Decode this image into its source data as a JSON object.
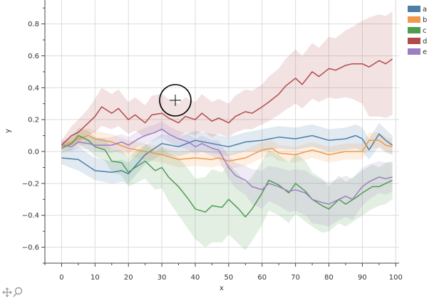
{
  "chart_data": {
    "type": "line",
    "xlabel": "x",
    "ylabel": "y",
    "xlim": [
      -5,
      101
    ],
    "ylim": [
      -0.7,
      0.95
    ],
    "xticks": [
      0,
      10,
      20,
      30,
      40,
      50,
      60,
      70,
      80,
      90,
      100
    ],
    "yticks": [
      -0.6,
      -0.4,
      -0.2,
      0.0,
      0.2,
      0.4,
      0.6,
      0.8
    ],
    "xtick_labels": [
      "0",
      "10",
      "20",
      "30",
      "40",
      "50",
      "60",
      "70",
      "80",
      "90",
      "100"
    ],
    "ytick_labels": [
      "−0.6",
      "−0.4",
      "−0.2",
      "0.0",
      "0.2",
      "0.4",
      "0.6",
      "0.8"
    ],
    "grid": true,
    "legend_position": "top-right outside",
    "bands": "shaded min–max envelope around each series",
    "series": [
      {
        "name": "a",
        "color": "#4c7ea8",
        "points": [
          [
            0,
            -0.04
          ],
          [
            5,
            -0.05
          ],
          [
            10,
            -0.12
          ],
          [
            15,
            -0.13
          ],
          [
            18,
            -0.12
          ],
          [
            20,
            -0.14
          ],
          [
            25,
            -0.02
          ],
          [
            30,
            0.05
          ],
          [
            35,
            0.03
          ],
          [
            40,
            0.07
          ],
          [
            45,
            0.05
          ],
          [
            50,
            0.03
          ],
          [
            55,
            0.06
          ],
          [
            60,
            0.07
          ],
          [
            65,
            0.09
          ],
          [
            70,
            0.08
          ],
          [
            75,
            0.1
          ],
          [
            80,
            0.07
          ],
          [
            85,
            0.08
          ],
          [
            88,
            0.1
          ],
          [
            90,
            0.08
          ],
          [
            92,
            0.01
          ],
          [
            95,
            0.11
          ],
          [
            97,
            0.07
          ],
          [
            99,
            0.04
          ]
        ],
        "band_low": [
          -0.08,
          -0.12,
          -0.18,
          -0.2,
          -0.19,
          -0.2,
          -0.08,
          -0.02,
          -0.03,
          0.0,
          -0.01,
          -0.03,
          0.0,
          0.0,
          0.02,
          0.01,
          0.03,
          0.0,
          0.01,
          0.02,
          0.0,
          -0.05,
          0.03,
          0.0,
          -0.02
        ],
        "band_high": [
          0.0,
          0.03,
          -0.04,
          -0.06,
          -0.05,
          -0.07,
          0.04,
          0.11,
          0.09,
          0.13,
          0.11,
          0.09,
          0.12,
          0.14,
          0.16,
          0.15,
          0.17,
          0.14,
          0.15,
          0.17,
          0.15,
          0.08,
          0.18,
          0.14,
          0.1
        ]
      },
      {
        "name": "b",
        "color": "#f0994a",
        "points": [
          [
            0,
            0.03
          ],
          [
            5,
            0.08
          ],
          [
            8,
            0.1
          ],
          [
            10,
            0.08
          ],
          [
            15,
            0.06
          ],
          [
            20,
            0.02
          ],
          [
            25,
            0.0
          ],
          [
            30,
            -0.02
          ],
          [
            35,
            -0.05
          ],
          [
            40,
            -0.04
          ],
          [
            45,
            -0.05
          ],
          [
            47,
            -0.04
          ],
          [
            50,
            -0.06
          ],
          [
            55,
            -0.04
          ],
          [
            60,
            0.01
          ],
          [
            63,
            0.02
          ],
          [
            65,
            -0.01
          ],
          [
            70,
            -0.02
          ],
          [
            75,
            0.01
          ],
          [
            80,
            -0.02
          ],
          [
            85,
            0.0
          ],
          [
            90,
            0.0
          ],
          [
            92,
            0.07
          ],
          [
            95,
            0.07
          ],
          [
            97,
            0.04
          ],
          [
            99,
            0.03
          ]
        ],
        "band_low": [
          0.0,
          0.03,
          0.05,
          0.03,
          0.01,
          -0.03,
          -0.05,
          -0.07,
          -0.1,
          -0.09,
          -0.1,
          -0.09,
          -0.11,
          -0.09,
          -0.04,
          -0.03,
          -0.06,
          -0.07,
          -0.04,
          -0.07,
          -0.05,
          -0.05,
          0.02,
          0.02,
          -0.01,
          -0.02
        ],
        "band_high": [
          0.06,
          0.13,
          0.15,
          0.13,
          0.11,
          0.07,
          0.05,
          0.03,
          0.0,
          0.01,
          0.0,
          0.01,
          -0.01,
          0.01,
          0.06,
          0.07,
          0.04,
          0.03,
          0.06,
          0.03,
          0.05,
          0.05,
          0.12,
          0.12,
          0.09,
          0.08
        ]
      },
      {
        "name": "c",
        "color": "#4f9c4f",
        "points": [
          [
            0,
            0.02
          ],
          [
            3,
            0.05
          ],
          [
            5,
            0.1
          ],
          [
            8,
            0.07
          ],
          [
            10,
            0.03
          ],
          [
            13,
            0.01
          ],
          [
            15,
            -0.06
          ],
          [
            18,
            -0.07
          ],
          [
            20,
            -0.13
          ],
          [
            22,
            -0.1
          ],
          [
            25,
            -0.06
          ],
          [
            28,
            -0.12
          ],
          [
            30,
            -0.1
          ],
          [
            32,
            -0.16
          ],
          [
            35,
            -0.22
          ],
          [
            38,
            -0.3
          ],
          [
            40,
            -0.36
          ],
          [
            43,
            -0.38
          ],
          [
            45,
            -0.34
          ],
          [
            48,
            -0.35
          ],
          [
            50,
            -0.3
          ],
          [
            53,
            -0.36
          ],
          [
            55,
            -0.41
          ],
          [
            57,
            -0.36
          ],
          [
            60,
            -0.26
          ],
          [
            62,
            -0.18
          ],
          [
            65,
            -0.21
          ],
          [
            68,
            -0.26
          ],
          [
            70,
            -0.2
          ],
          [
            73,
            -0.25
          ],
          [
            75,
            -0.3
          ],
          [
            78,
            -0.34
          ],
          [
            80,
            -0.36
          ],
          [
            83,
            -0.3
          ],
          [
            85,
            -0.33
          ],
          [
            88,
            -0.29
          ],
          [
            90,
            -0.26
          ],
          [
            93,
            -0.22
          ],
          [
            95,
            -0.22
          ],
          [
            97,
            -0.2
          ],
          [
            99,
            -0.18
          ]
        ],
        "band_low": [
          -0.01,
          0.01,
          0.05,
          0.01,
          -0.03,
          -0.06,
          -0.13,
          -0.15,
          -0.22,
          -0.2,
          -0.17,
          -0.24,
          -0.23,
          -0.31,
          -0.4,
          -0.49,
          -0.55,
          -0.6,
          -0.57,
          -0.57,
          -0.52,
          -0.58,
          -0.62,
          -0.56,
          -0.46,
          -0.37,
          -0.4,
          -0.45,
          -0.39,
          -0.44,
          -0.47,
          -0.51,
          -0.5,
          -0.45,
          -0.47,
          -0.43,
          -0.4,
          -0.36,
          -0.34,
          -0.33,
          -0.3
        ],
        "band_high": [
          0.05,
          0.09,
          0.15,
          0.13,
          0.09,
          0.08,
          0.01,
          0.01,
          -0.04,
          0.0,
          0.05,
          0.0,
          0.03,
          -0.01,
          -0.04,
          -0.11,
          -0.17,
          -0.16,
          -0.11,
          -0.13,
          -0.08,
          -0.14,
          -0.2,
          -0.16,
          -0.06,
          0.01,
          -0.02,
          -0.07,
          -0.01,
          -0.06,
          -0.13,
          -0.17,
          -0.22,
          -0.15,
          -0.19,
          -0.15,
          -0.12,
          -0.08,
          -0.1,
          -0.07,
          -0.06
        ]
      },
      {
        "name": "d",
        "color": "#b24a4a",
        "points": [
          [
            0,
            0.04
          ],
          [
            3,
            0.1
          ],
          [
            5,
            0.12
          ],
          [
            8,
            0.18
          ],
          [
            10,
            0.22
          ],
          [
            12,
            0.28
          ],
          [
            15,
            0.24
          ],
          [
            17,
            0.27
          ],
          [
            20,
            0.2
          ],
          [
            22,
            0.23
          ],
          [
            25,
            0.18
          ],
          [
            27,
            0.23
          ],
          [
            30,
            0.24
          ],
          [
            32,
            0.21
          ],
          [
            35,
            0.18
          ],
          [
            37,
            0.22
          ],
          [
            40,
            0.2
          ],
          [
            42,
            0.24
          ],
          [
            45,
            0.19
          ],
          [
            47,
            0.21
          ],
          [
            50,
            0.18
          ],
          [
            52,
            0.22
          ],
          [
            55,
            0.25
          ],
          [
            57,
            0.24
          ],
          [
            60,
            0.28
          ],
          [
            62,
            0.31
          ],
          [
            65,
            0.36
          ],
          [
            67,
            0.41
          ],
          [
            70,
            0.46
          ],
          [
            72,
            0.42
          ],
          [
            75,
            0.5
          ],
          [
            77,
            0.47
          ],
          [
            80,
            0.52
          ],
          [
            82,
            0.51
          ],
          [
            85,
            0.54
          ],
          [
            87,
            0.55
          ],
          [
            90,
            0.55
          ],
          [
            92,
            0.53
          ],
          [
            95,
            0.57
          ],
          [
            97,
            0.55
          ],
          [
            99,
            0.58
          ]
        ],
        "band_low": [
          0.02,
          0.04,
          0.06,
          0.1,
          0.12,
          0.16,
          0.14,
          0.16,
          0.11,
          0.13,
          0.09,
          0.12,
          0.13,
          0.11,
          0.09,
          0.12,
          0.1,
          0.13,
          0.09,
          0.11,
          0.09,
          0.12,
          0.14,
          0.14,
          0.17,
          0.19,
          0.23,
          0.26,
          0.3,
          0.27,
          0.33,
          0.31,
          0.34,
          0.33,
          0.34,
          0.33,
          0.3,
          0.22,
          0.22,
          0.21,
          0.23
        ],
        "band_high": [
          0.07,
          0.16,
          0.2,
          0.27,
          0.33,
          0.4,
          0.36,
          0.39,
          0.31,
          0.34,
          0.29,
          0.35,
          0.36,
          0.33,
          0.3,
          0.34,
          0.31,
          0.36,
          0.31,
          0.33,
          0.3,
          0.35,
          0.39,
          0.38,
          0.42,
          0.47,
          0.52,
          0.58,
          0.64,
          0.6,
          0.68,
          0.65,
          0.72,
          0.71,
          0.76,
          0.78,
          0.82,
          0.84,
          0.86,
          0.85,
          0.88
        ]
      },
      {
        "name": "e",
        "color": "#9b7fc0",
        "points": [
          [
            0,
            0.04
          ],
          [
            3,
            0.03
          ],
          [
            5,
            0.06
          ],
          [
            8,
            0.05
          ],
          [
            10,
            0.04
          ],
          [
            15,
            0.04
          ],
          [
            18,
            0.06
          ],
          [
            20,
            0.04
          ],
          [
            23,
            0.08
          ],
          [
            25,
            0.1
          ],
          [
            28,
            0.12
          ],
          [
            30,
            0.14
          ],
          [
            32,
            0.11
          ],
          [
            35,
            0.08
          ],
          [
            38,
            0.06
          ],
          [
            40,
            0.03
          ],
          [
            42,
            0.05
          ],
          [
            45,
            0.02
          ],
          [
            47,
            0.01
          ],
          [
            50,
            -0.1
          ],
          [
            52,
            -0.15
          ],
          [
            55,
            -0.18
          ],
          [
            57,
            -0.22
          ],
          [
            60,
            -0.24
          ],
          [
            62,
            -0.2
          ],
          [
            65,
            -0.22
          ],
          [
            68,
            -0.25
          ],
          [
            70,
            -0.24
          ],
          [
            73,
            -0.26
          ],
          [
            75,
            -0.3
          ],
          [
            78,
            -0.32
          ],
          [
            80,
            -0.33
          ],
          [
            83,
            -0.3
          ],
          [
            85,
            -0.28
          ],
          [
            87,
            -0.3
          ],
          [
            90,
            -0.22
          ],
          [
            92,
            -0.19
          ],
          [
            95,
            -0.16
          ],
          [
            97,
            -0.17
          ],
          [
            99,
            -0.16
          ]
        ],
        "band_low": [
          0.01,
          0.0,
          0.02,
          0.01,
          0.0,
          -0.01,
          0.01,
          -0.01,
          0.03,
          0.05,
          0.07,
          0.09,
          0.06,
          0.03,
          0.01,
          -0.02,
          0.0,
          -0.03,
          -0.05,
          -0.17,
          -0.23,
          -0.27,
          -0.33,
          -0.36,
          -0.31,
          -0.34,
          -0.38,
          -0.37,
          -0.4,
          -0.45,
          -0.46,
          -0.47,
          -0.43,
          -0.41,
          -0.43,
          -0.34,
          -0.3,
          -0.26,
          -0.27,
          -0.25
        ],
        "band_high": [
          0.07,
          0.06,
          0.1,
          0.09,
          0.08,
          0.09,
          0.11,
          0.09,
          0.13,
          0.15,
          0.17,
          0.19,
          0.16,
          0.13,
          0.11,
          0.08,
          0.1,
          0.07,
          0.07,
          -0.03,
          -0.07,
          -0.09,
          -0.11,
          -0.12,
          -0.09,
          -0.1,
          -0.12,
          -0.11,
          -0.12,
          -0.15,
          -0.18,
          -0.19,
          -0.17,
          -0.15,
          -0.17,
          -0.1,
          -0.08,
          -0.06,
          -0.07,
          -0.07
        ]
      }
    ]
  },
  "toolbar": {
    "pan_icon": "pan-icon",
    "zoom_icon": "magnifier-icon"
  },
  "cursor": {
    "icon": "crosshair-icon"
  }
}
